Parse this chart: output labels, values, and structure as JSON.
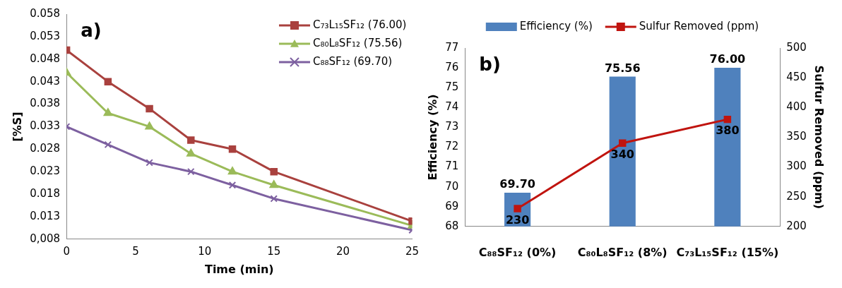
{
  "chart_data": [
    {
      "type": "line",
      "xlabel": "Time (min)",
      "ylabel": "[%S]",
      "annotations": [
        "a)"
      ],
      "x": [
        0,
        3,
        6,
        9,
        12,
        15,
        25
      ],
      "series": [
        {
          "name": "C₇₃L₁₅SF₁₂ (76.00)",
          "color": "#a9413e",
          "marker": "square",
          "values": [
            0.05,
            0.043,
            0.037,
            0.03,
            0.028,
            0.023,
            0.012
          ]
        },
        {
          "name": "C₈₀L₈SF₁₂ (75.56)",
          "color": "#9bbb59",
          "marker": "triangle",
          "values": [
            0.045,
            0.036,
            0.033,
            0.027,
            0.023,
            0.02,
            0.011
          ]
        },
        {
          "name": "C₈₈SF₁₂ (69.70)",
          "color": "#7d60a0",
          "marker": "cross",
          "values": [
            0.033,
            0.029,
            0.025,
            0.023,
            0.02,
            0.017,
            0.01
          ]
        }
      ],
      "xlim": [
        0,
        25
      ],
      "xticks": [
        0,
        5,
        10,
        15,
        20,
        25
      ],
      "ylim": [
        0.008,
        0.058
      ],
      "yticks": [
        {
          "value": 0.008,
          "label": "0,008"
        },
        0.013,
        0.018,
        0.023,
        0.028,
        0.033,
        0.038,
        0.043,
        0.048,
        0.053,
        0.058
      ],
      "legend": "top right",
      "line_style": "solid"
    },
    {
      "type": "bar",
      "ylabel": "Efficiency (%)",
      "y2label": "Sulfur Removed (ppm)",
      "annotations": [
        "b)"
      ],
      "categories": [
        "C₈₈SF₁₂ (0%)",
        "C₈₀L₈SF₁₂ (8%)",
        "C₇₃L₁₅SF₁₂ (15%)"
      ],
      "series": [
        {
          "name": "Efficiency (%)",
          "type": "bar",
          "color": "#4f81bd",
          "values": [
            69.7,
            75.56,
            76.0
          ],
          "value_labels": [
            "69.70",
            "75.56",
            "76.00"
          ]
        },
        {
          "name": "Sulfur Removed (ppm)",
          "type": "line",
          "axis": "y2",
          "color": "#c0140f",
          "marker": "square",
          "values": [
            230,
            340,
            380
          ],
          "value_labels": [
            "230",
            "340",
            "380"
          ]
        }
      ],
      "ylim": [
        68,
        77
      ],
      "yticks": [
        68,
        69,
        70,
        71,
        72,
        73,
        74,
        75,
        76,
        77
      ],
      "y2lim": [
        200,
        500
      ],
      "y2ticks": [
        200,
        250,
        300,
        350,
        400,
        450,
        500
      ],
      "legend": "top",
      "line_style": "solid"
    }
  ]
}
